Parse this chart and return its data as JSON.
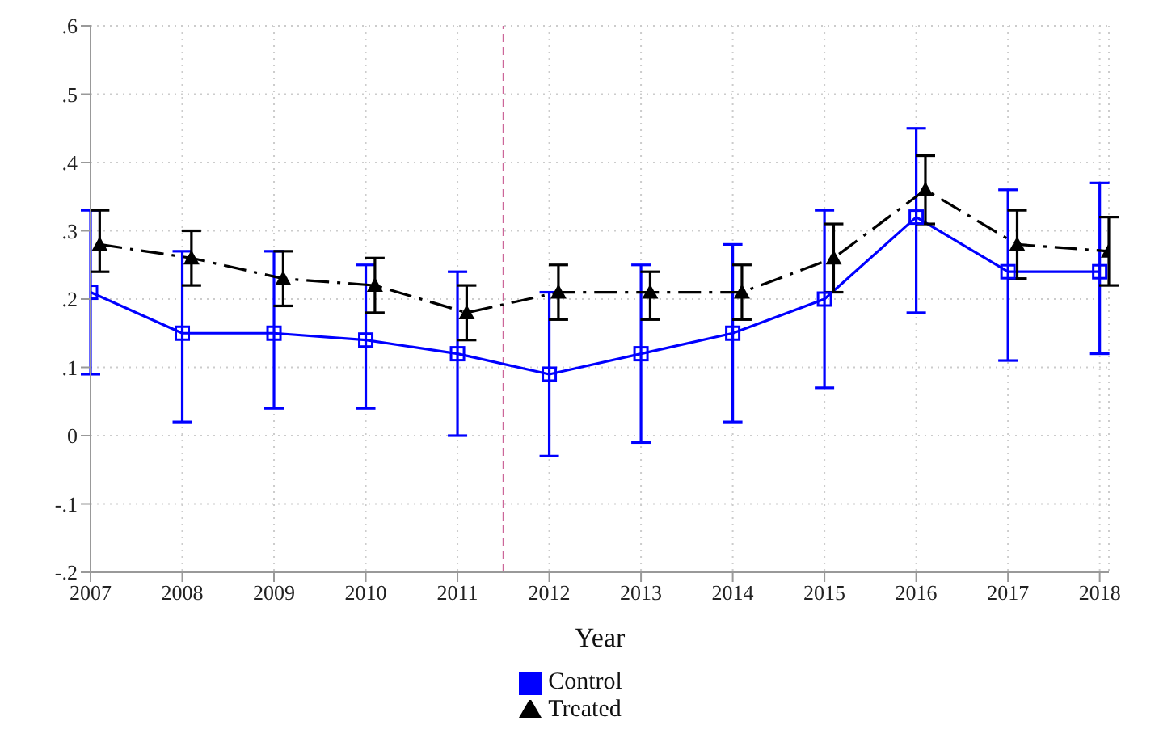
{
  "chart_data": {
    "type": "line",
    "xlabel": "Year",
    "x": [
      2007,
      2008,
      2009,
      2010,
      2011,
      2012,
      2013,
      2014,
      2015,
      2016,
      2017,
      2018
    ],
    "xlim": [
      2007,
      2018.1
    ],
    "xticks": [
      2007,
      2008,
      2009,
      2010,
      2011,
      2012,
      2013,
      2014,
      2015,
      2016,
      2017,
      2018
    ],
    "ylim": [
      -0.2,
      0.6
    ],
    "yticks": [
      {
        "value": -0.2,
        "label": "-.2"
      },
      {
        "value": -0.1,
        "label": "-.1"
      },
      0,
      {
        "value": 0.1,
        "label": ".1"
      },
      {
        "value": 0.2,
        "label": ".2"
      },
      {
        "value": 0.3,
        "label": ".3"
      },
      {
        "value": 0.4,
        "label": ".4"
      },
      {
        "value": 0.5,
        "label": ".5"
      },
      {
        "value": 0.6,
        "label": ".6"
      }
    ],
    "series": [
      {
        "name": "Control",
        "color": "#0000ff",
        "marker": "square",
        "line_style": "solid",
        "values": [
          0.21,
          0.15,
          0.15,
          0.14,
          0.12,
          0.09,
          0.12,
          0.15,
          0.2,
          0.32,
          0.24,
          0.24
        ],
        "errors": [
          [
            0.09,
            0.33
          ],
          [
            0.02,
            0.27
          ],
          [
            0.04,
            0.27
          ],
          [
            0.04,
            0.25
          ],
          [
            0.0,
            0.24
          ],
          [
            -0.03,
            0.21
          ],
          [
            -0.01,
            0.25
          ],
          [
            0.02,
            0.28
          ],
          [
            0.07,
            0.33
          ],
          [
            0.18,
            0.45
          ],
          [
            0.11,
            0.36
          ],
          [
            0.12,
            0.37
          ]
        ]
      },
      {
        "name": "Treated",
        "color": "#000000",
        "marker": "triangle",
        "line_style": "dashed",
        "x": [
          2007.1,
          2008.1,
          2009.1,
          2010.1,
          2011.1,
          2012.1,
          2013.1,
          2014.1,
          2015.1,
          2016.1,
          2017.1,
          2018.1
        ],
        "values": [
          0.28,
          0.26,
          0.23,
          0.22,
          0.18,
          0.21,
          0.21,
          0.21,
          0.26,
          0.36,
          0.28,
          0.27
        ],
        "errors": [
          [
            0.24,
            0.33
          ],
          [
            0.22,
            0.3
          ],
          [
            0.19,
            0.27
          ],
          [
            0.18,
            0.26
          ],
          [
            0.14,
            0.22
          ],
          [
            0.17,
            0.25
          ],
          [
            0.17,
            0.24
          ],
          [
            0.17,
            0.25
          ],
          [
            0.21,
            0.31
          ],
          [
            0.31,
            0.41
          ],
          [
            0.23,
            0.33
          ],
          [
            0.22,
            0.32
          ]
        ]
      }
    ],
    "ref_lines": [
      {
        "axis": "x",
        "value": 2011.5,
        "color": "#cc6699",
        "line_style": "dashed"
      }
    ],
    "grid": true,
    "legend": "bottom"
  }
}
